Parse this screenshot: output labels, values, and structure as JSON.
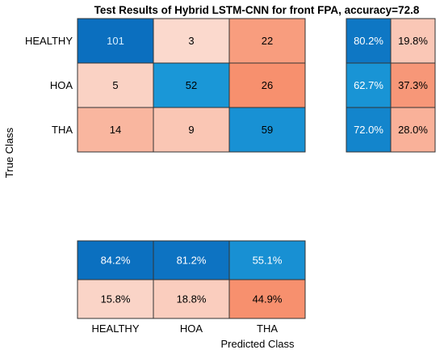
{
  "chart_data": {
    "type": "heatmap",
    "title": "Test Results of Hybrid LSTM-CNN for front FPA, accuracy=72.8",
    "xlabel": "Predicted Class",
    "ylabel": "True Class",
    "classes": [
      "HEALTHY",
      "HOA",
      "THA"
    ],
    "matrix": [
      [
        101,
        3,
        22
      ],
      [
        5,
        52,
        26
      ],
      [
        14,
        9,
        59
      ]
    ],
    "row_summary": [
      [
        "80.2%",
        "19.8%"
      ],
      [
        "62.7%",
        "37.3%"
      ],
      [
        "72.0%",
        "28.0%"
      ]
    ],
    "row_summary_values": [
      [
        80.2,
        19.8
      ],
      [
        62.7,
        37.3
      ],
      [
        72.0,
        28.0
      ]
    ],
    "column_summary": [
      [
        "84.2%",
        "81.2%",
        "55.1%"
      ],
      [
        "15.8%",
        "18.8%",
        "44.9%"
      ]
    ],
    "column_summary_values": [
      [
        84.2,
        81.2,
        55.1
      ],
      [
        15.8,
        18.8,
        44.9
      ]
    ],
    "colors": {
      "correct_dark": "#0b6fbf",
      "correct_light": "#1ea1dd",
      "error_light": "#fbe2d9",
      "error_dark": "#f7906e",
      "grid": "#333333"
    }
  }
}
